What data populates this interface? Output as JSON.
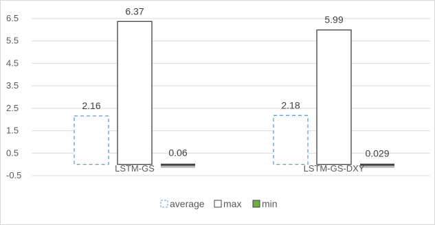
{
  "chart_data": {
    "type": "bar",
    "categories": [
      "LSTM-GS",
      "LSTM-GS-DXY"
    ],
    "series": [
      {
        "name": "average",
        "values": [
          2.16,
          2.18
        ],
        "labels": [
          "2.16",
          "2.18"
        ],
        "stroke": "#5b9bd5",
        "fill": "#ffffff"
      },
      {
        "name": "max",
        "values": [
          6.37,
          5.99
        ],
        "labels": [
          "6.37",
          "5.99"
        ],
        "stroke": "#404040",
        "fill": "#ffffff"
      },
      {
        "name": "min",
        "values": [
          0.06,
          0.029
        ],
        "labels": [
          "0.06",
          "0.029"
        ],
        "stroke": "#404040",
        "fill": "#70ad47"
      }
    ],
    "yticks": [
      "6.5",
      "5.5",
      "4.5",
      "3.5",
      "2.5",
      "1.5",
      "0.5",
      "-0.5"
    ],
    "ylim": [
      -0.5,
      6.5
    ],
    "grid": true,
    "legend_position": "bottom",
    "title": "",
    "xlabel": "",
    "ylabel": ""
  }
}
